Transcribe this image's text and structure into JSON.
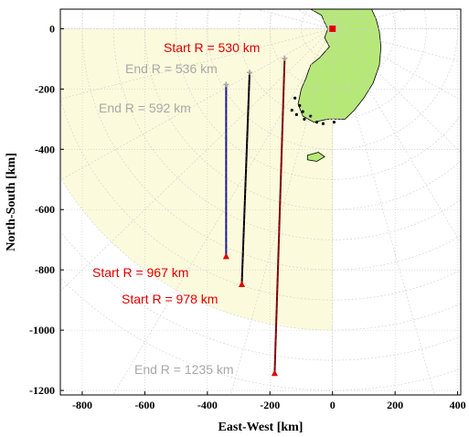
{
  "chart_data": {
    "type": "scatter",
    "xlabel": "East-West [km]",
    "ylabel": "North-South [km]",
    "xlim": [
      -870,
      410
    ],
    "ylim": [
      -1215,
      65
    ],
    "xticks": [
      -800,
      -600,
      -400,
      -200,
      0,
      200,
      400
    ],
    "yticks": [
      0,
      -200,
      -400,
      -600,
      -800,
      -1000,
      -1200
    ],
    "grid": true,
    "radar": {
      "site": [
        0,
        0
      ],
      "range_rings_km": [
        100,
        200,
        300,
        400,
        500,
        600,
        700,
        800,
        900,
        1000,
        1100,
        1200
      ],
      "radial_step_deg": 15,
      "coverage_sector": {
        "start_bearing_deg": 180,
        "end_bearing_deg": 270,
        "radius_km": 1000
      },
      "site_color": "#e00000",
      "sector_color": "#fbfadc",
      "land_color": "#b6e878"
    },
    "series": [
      {
        "start": [
          -340,
          -755
        ],
        "end": [
          -340,
          -185
        ],
        "color": "#1a1a8c"
      },
      {
        "start": [
          -290,
          -848
        ],
        "end": [
          -265,
          -145
        ],
        "color": "#000000"
      },
      {
        "start": [
          -185,
          -1143
        ],
        "end": [
          -153,
          -98
        ],
        "color": "#7a0000"
      }
    ],
    "annotations": [
      {
        "text": "Start R = 530 km",
        "color": "#e00000"
      },
      {
        "text": "End R = 536 km",
        "color": "#a8a8a8"
      },
      {
        "text": "End R = 592 km",
        "color": "#a8a8a8"
      },
      {
        "text": "Start R = 967 km",
        "color": "#e00000"
      },
      {
        "text": "Start R = 978 km",
        "color": "#e00000"
      },
      {
        "text": "End R = 1235 km",
        "color": "#a8a8a8"
      }
    ]
  }
}
